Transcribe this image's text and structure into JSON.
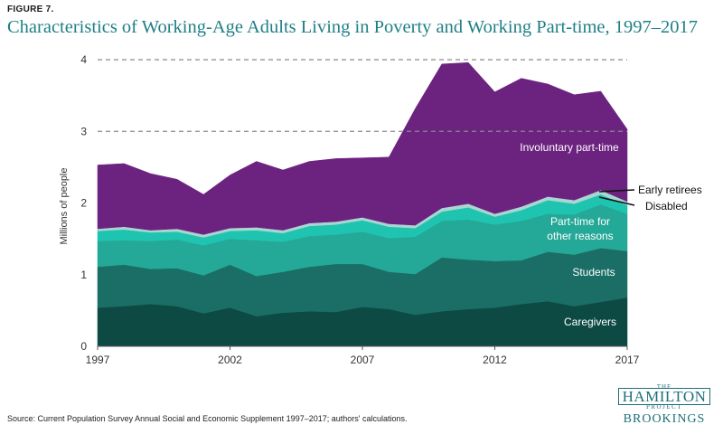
{
  "figure_label": "FIGURE 7.",
  "title": "Characteristics of Working-Age Adults Living in Poverty and Working Part-time, 1997–2017",
  "source": "Source: Current Population Survey Annual Social and Economic Supplement 1997–2017; authors' calculations.",
  "logo": {
    "the": "THE",
    "name": "HAMILTON",
    "project": "PROJECT",
    "brookings": "BROOKINGS"
  },
  "colors": {
    "caregivers": "#0d4a44",
    "students": "#1a6e65",
    "other_reasons": "#24a897",
    "disabled": "#1fc4b1",
    "early_retirees": "#a9d6d1",
    "involuntary": "#6c2380",
    "title": "#1f7f86"
  },
  "chart_data": {
    "type": "area",
    "stacked": true,
    "ylabel": "Millions of people",
    "xlabel": "",
    "ylim": [
      0,
      4
    ],
    "yticks": [
      0,
      1,
      2,
      3,
      4
    ],
    "xticks": [
      1997,
      2002,
      2007,
      2012,
      2017
    ],
    "grid": "dashed at 3 and 4",
    "x": [
      1997,
      1998,
      1999,
      2000,
      2001,
      2002,
      2003,
      2004,
      2005,
      2006,
      2007,
      2008,
      2009,
      2010,
      2011,
      2012,
      2013,
      2014,
      2015,
      2016,
      2017
    ],
    "series": [
      {
        "name": "Caregivers",
        "key": "caregivers",
        "values": [
          0.54,
          0.56,
          0.59,
          0.56,
          0.46,
          0.54,
          0.42,
          0.47,
          0.49,
          0.48,
          0.55,
          0.52,
          0.44,
          0.49,
          0.52,
          0.54,
          0.59,
          0.63,
          0.56,
          0.62,
          0.68
        ]
      },
      {
        "name": "Students",
        "key": "students",
        "values": [
          0.57,
          0.58,
          0.49,
          0.53,
          0.53,
          0.6,
          0.56,
          0.57,
          0.62,
          0.67,
          0.6,
          0.52,
          0.57,
          0.75,
          0.69,
          0.65,
          0.61,
          0.69,
          0.72,
          0.75,
          0.65
        ]
      },
      {
        "name": "Part-time for other reasons",
        "key": "other_reasons",
        "values": [
          0.36,
          0.34,
          0.39,
          0.4,
          0.42,
          0.36,
          0.5,
          0.42,
          0.43,
          0.41,
          0.45,
          0.47,
          0.52,
          0.51,
          0.56,
          0.51,
          0.55,
          0.53,
          0.56,
          0.61,
          0.52
        ]
      },
      {
        "name": "Disabled",
        "key": "disabled",
        "values": [
          0.14,
          0.15,
          0.12,
          0.11,
          0.11,
          0.11,
          0.14,
          0.12,
          0.14,
          0.14,
          0.16,
          0.16,
          0.12,
          0.13,
          0.17,
          0.11,
          0.15,
          0.19,
          0.15,
          0.14,
          0.12
        ]
      },
      {
        "name": "Early retirees",
        "key": "early_retirees",
        "values": [
          0.03,
          0.04,
          0.03,
          0.04,
          0.04,
          0.04,
          0.04,
          0.04,
          0.04,
          0.04,
          0.04,
          0.04,
          0.04,
          0.05,
          0.05,
          0.04,
          0.05,
          0.05,
          0.05,
          0.06,
          0.05
        ]
      },
      {
        "name": "Involuntary part-time",
        "key": "involuntary",
        "values": [
          0.89,
          0.88,
          0.79,
          0.69,
          0.56,
          0.74,
          0.92,
          0.84,
          0.86,
          0.88,
          0.83,
          0.93,
          1.63,
          2.01,
          1.97,
          1.7,
          1.79,
          1.57,
          1.47,
          1.38,
          1.01
        ]
      }
    ],
    "labels": {
      "caregivers": "Caregivers",
      "students": "Students",
      "other_reasons_line1": "Part-time for",
      "other_reasons_line2": "other reasons",
      "involuntary": "Involuntary part-time",
      "early_retirees": "Early retirees",
      "disabled": "Disabled"
    }
  }
}
